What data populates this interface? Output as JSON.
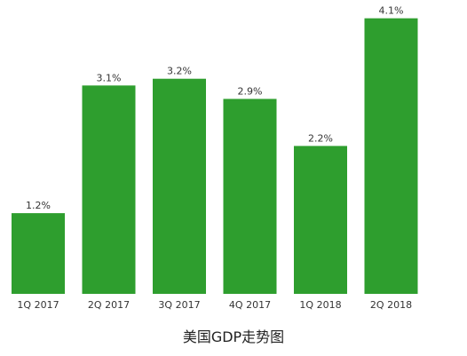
{
  "chart_data": {
    "type": "bar",
    "title": "美国GDP走势图",
    "categories": [
      "1Q 2017",
      "2Q 2017",
      "3Q 2017",
      "4Q 2017",
      "1Q 2018",
      "2Q 2018"
    ],
    "values": [
      1.2,
      3.1,
      3.2,
      2.9,
      2.2,
      4.1
    ],
    "data_labels": [
      "1.2%",
      "3.1%",
      "3.2%",
      "2.9%",
      "2.2%",
      "4.1%"
    ],
    "ylim": [
      0,
      4.2
    ],
    "grid": false,
    "bar_color": "#2e9e2e"
  }
}
